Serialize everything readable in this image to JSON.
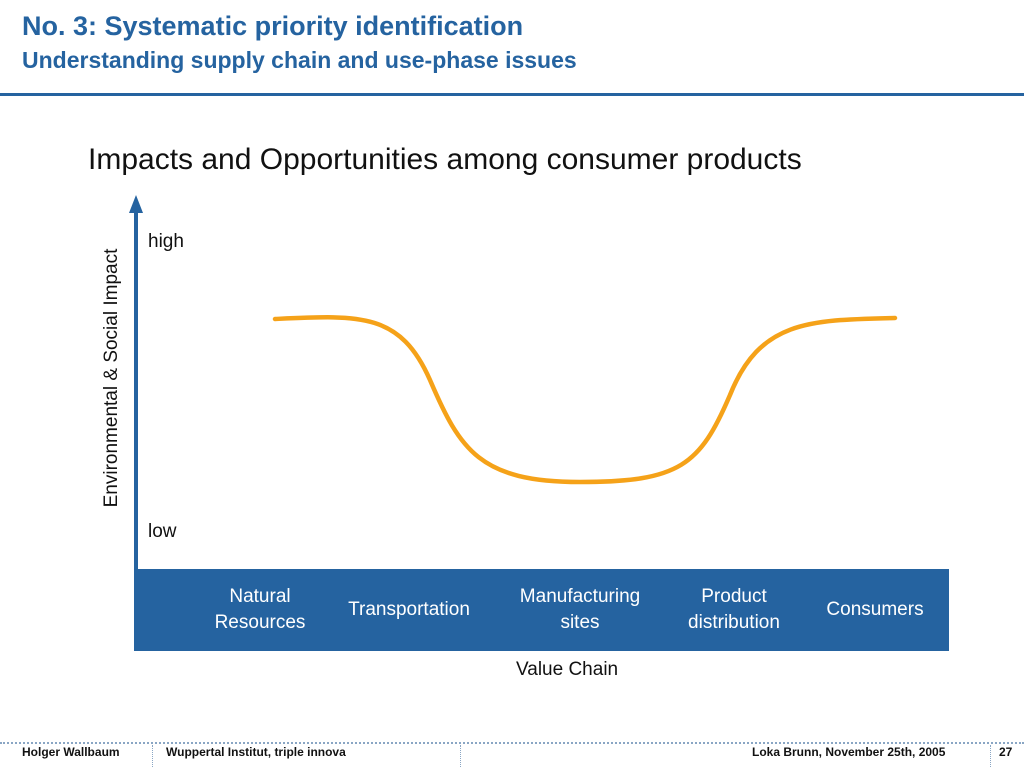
{
  "slide": {
    "title": "No. 3: Systematic priority identification",
    "subtitle": "Understanding supply chain and use-phase issues",
    "heading": "Impacts and Opportunities among consumer products"
  },
  "chart_data": {
    "type": "line",
    "title": "Impacts and Opportunities among consumer products",
    "ylabel": "Environmental & Social Impact",
    "xlabel": "Value Chain",
    "y_ticks": [
      "high",
      "low"
    ],
    "categories": [
      "Natural\nResources",
      "Transportation",
      "Manufacturing\nsites",
      "Product\ndistribution",
      "Consumers"
    ],
    "curve_shape": "U",
    "colors": {
      "curve": "#f5a219",
      "axis": "#2563a0",
      "bar": "#2563a0"
    }
  },
  "footer": {
    "author": "Holger Wallbaum",
    "organization": "Wuppertal Institut, triple innova",
    "event": "Loka Brunn, November 25th, 2005",
    "page": "27"
  }
}
